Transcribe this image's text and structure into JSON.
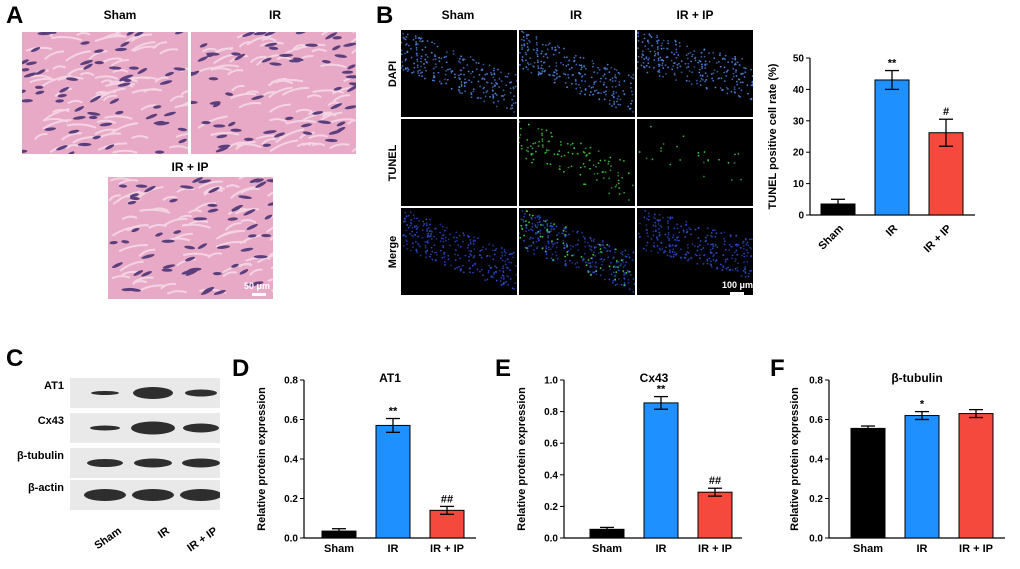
{
  "panel_a": {
    "letter": "A",
    "labels": [
      "Sham",
      "IR",
      "IR + IP"
    ],
    "scale_bar": "50 μm"
  },
  "panel_b": {
    "letter": "B",
    "columns": [
      "Sham",
      "IR",
      "IR + IP"
    ],
    "rows": [
      "DAPI",
      "TUNEL",
      "Merge"
    ],
    "scale_bar": "100 μm"
  },
  "panel_c": {
    "letter": "C",
    "bands": [
      "AT1",
      "Cx43",
      "β-tubulin",
      "β-actin"
    ],
    "lanes": [
      "Sham",
      "IR",
      "IR + IP"
    ]
  },
  "panel_d": {
    "letter": "D"
  },
  "panel_e": {
    "letter": "E"
  },
  "panel_f": {
    "letter": "F"
  },
  "colors": {
    "sham": "#000000",
    "ir": "#1e90ff",
    "ir_ip": "#f4493c"
  },
  "chart_data": [
    {
      "id": "tunel",
      "type": "bar",
      "title": "",
      "categories": [
        "Sham",
        "IR",
        "IR + IP"
      ],
      "values": [
        3.5,
        43,
        26.2
      ],
      "errors": [
        1.5,
        3,
        4.3
      ],
      "annotations": [
        "",
        "**",
        "#"
      ],
      "ylabel": "TUNEL positive cell rate (%)",
      "xlabel": "",
      "ylim": [
        0,
        50
      ],
      "yticks": [
        0,
        10,
        20,
        30,
        40,
        50
      ],
      "ytick_labels": [
        "0",
        "10",
        "20",
        "30",
        "40",
        "50"
      ]
    },
    {
      "id": "at1",
      "type": "bar",
      "title": "AT1",
      "categories": [
        "Sham",
        "IR",
        "IR + IP"
      ],
      "values": [
        0.035,
        0.57,
        0.14
      ],
      "errors": [
        0.012,
        0.035,
        0.02
      ],
      "annotations": [
        "",
        "**",
        "##"
      ],
      "ylabel": "Relative protein expression",
      "xlabel": "",
      "ylim": [
        0,
        0.8
      ],
      "yticks": [
        0,
        0.2,
        0.4,
        0.6,
        0.8
      ],
      "ytick_labels": [
        "0.0",
        "0.2",
        "0.4",
        "0.6",
        "0.8"
      ]
    },
    {
      "id": "cx43",
      "type": "bar",
      "title": "Cx43",
      "categories": [
        "Sham",
        "IR",
        "IR + IP"
      ],
      "values": [
        0.055,
        0.855,
        0.29
      ],
      "errors": [
        0.012,
        0.04,
        0.025
      ],
      "annotations": [
        "",
        "**",
        "##"
      ],
      "ylabel": "Relative protein expression",
      "xlabel": "",
      "ylim": [
        0,
        1.0
      ],
      "yticks": [
        0,
        0.2,
        0.4,
        0.6,
        0.8,
        1.0
      ],
      "ytick_labels": [
        "0.0",
        "0.2",
        "0.4",
        "0.6",
        "0.8",
        "1.0"
      ]
    },
    {
      "id": "tubulin",
      "type": "bar",
      "title": "β-tubulin",
      "categories": [
        "Sham",
        "IR",
        "IR + IP"
      ],
      "values": [
        0.555,
        0.62,
        0.63
      ],
      "errors": [
        0.012,
        0.02,
        0.02
      ],
      "annotations": [
        "",
        "*",
        ""
      ],
      "ylabel": "Relative protein expression",
      "xlabel": "",
      "ylim": [
        0,
        0.8
      ],
      "yticks": [
        0,
        0.2,
        0.4,
        0.6,
        0.8
      ],
      "ytick_labels": [
        "0.0",
        "0.2",
        "0.4",
        "0.6",
        "0.8"
      ]
    }
  ]
}
